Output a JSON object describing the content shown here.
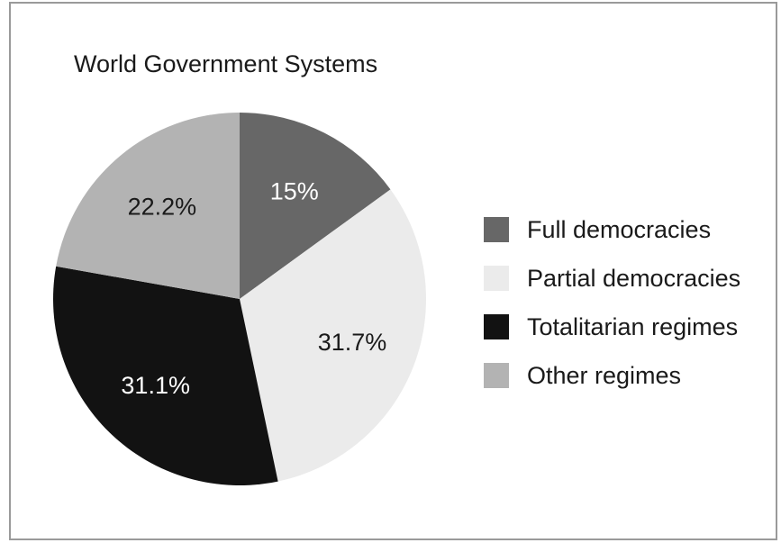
{
  "chart_data": {
    "type": "pie",
    "title": "World Government Systems",
    "slices": [
      {
        "label": "Full democracies",
        "value": 15,
        "value_label": "15%",
        "color": "#676767",
        "text_color": "#ffffff"
      },
      {
        "label": "Partial democracies",
        "value": 31.7,
        "value_label": "31.7%",
        "color": "#ebebeb",
        "text_color": "#1a1a1a"
      },
      {
        "label": "Totalitarian regimes",
        "value": 31.1,
        "value_label": "31.1%",
        "color": "#121212",
        "text_color": "#ffffff"
      },
      {
        "label": "Other regimes",
        "value": 22.2,
        "value_label": "22.2%",
        "color": "#b3b3b3",
        "text_color": "#1a1a1a"
      }
    ],
    "start_angle": "12 o'clock",
    "direction": "clockwise",
    "legend_position": "right"
  }
}
